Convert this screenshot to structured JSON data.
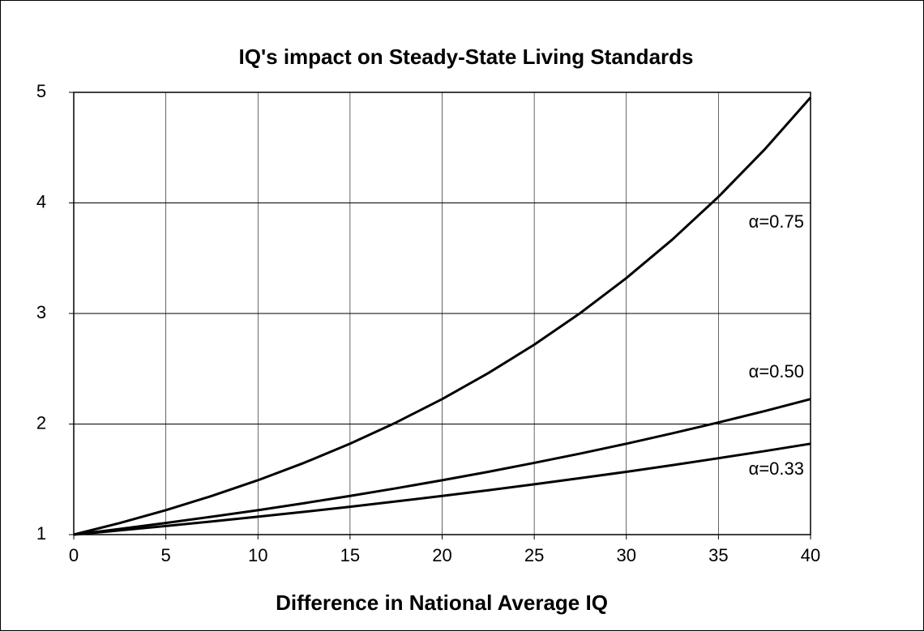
{
  "chart_data": {
    "type": "line",
    "title": "IQ's impact on Steady-State Living Standards",
    "x_label": "Difference in National Average IQ",
    "x": [
      0,
      2.5,
      5,
      7.5,
      10,
      12.5,
      15,
      17.5,
      20,
      22.5,
      25,
      27.5,
      30,
      32.5,
      35,
      37.5,
      40
    ],
    "series": [
      {
        "name": "α=0.75",
        "color": "#000000",
        "values": [
          1,
          1.105,
          1.221,
          1.35,
          1.492,
          1.649,
          1.822,
          2.014,
          2.226,
          2.46,
          2.718,
          3.004,
          3.32,
          3.669,
          4.055,
          4.482,
          4.953
        ]
      },
      {
        "name": "α=0.50",
        "color": "#000000",
        "values": [
          1,
          1.051,
          1.105,
          1.162,
          1.221,
          1.284,
          1.35,
          1.419,
          1.492,
          1.568,
          1.649,
          1.733,
          1.822,
          1.916,
          2.014,
          2.117,
          2.226
        ]
      },
      {
        "name": "α=0.33",
        "color": "#000000",
        "values": [
          1,
          1.038,
          1.078,
          1.119,
          1.162,
          1.206,
          1.252,
          1.3,
          1.35,
          1.401,
          1.455,
          1.511,
          1.568,
          1.628,
          1.691,
          1.755,
          1.822
        ]
      }
    ],
    "xlim": [
      0,
      40
    ],
    "xticks": [
      0,
      5,
      10,
      15,
      20,
      25,
      30,
      35,
      40
    ],
    "ylim": [
      1,
      5
    ],
    "yticks": [
      1,
      2,
      3,
      4,
      5
    ],
    "grid": true
  }
}
